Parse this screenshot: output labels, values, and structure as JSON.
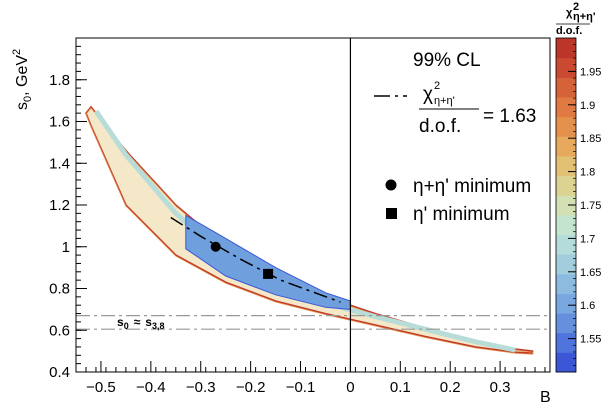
{
  "chart_data": {
    "type": "contour",
    "x_label": "B",
    "y_label_main": "s",
    "y_label_sub": "0",
    "y_label_rest": ", GeV",
    "y_label_sup": "2",
    "xlim": [
      -0.55,
      0.4
    ],
    "ylim": [
      0.4,
      2.0
    ],
    "x_ticks": [
      -0.5,
      -0.4,
      -0.3,
      -0.2,
      -0.1,
      0,
      0.1,
      0.2,
      0.3
    ],
    "x_tick_labels": [
      "−0.5",
      "−0.4",
      "−0.3",
      "−0.2",
      "−0.1",
      "0",
      "0.1",
      "0.2",
      "0.3"
    ],
    "y_ticks": [
      0.4,
      0.6,
      0.8,
      1.0,
      1.2,
      1.4,
      1.6,
      1.8
    ],
    "y_tick_labels": [
      "0.4",
      "0.6",
      "0.8",
      "1",
      "1.2",
      "1.4",
      "1.6",
      "1.8"
    ],
    "colorbar": {
      "range": [
        1.5,
        2.0
      ],
      "ticks": [
        1.55,
        1.6,
        1.65,
        1.7,
        1.75,
        1.8,
        1.85,
        1.9,
        1.95
      ],
      "tick_labels": [
        "1.55",
        "1.6",
        "1.65",
        "1.7",
        "1.75",
        "1.8",
        "1.85",
        "1.9",
        "1.95"
      ],
      "title_chi": "χ",
      "title_sup": "2",
      "title_sub": "η+η'",
      "title_den": "d.o.f.",
      "colors": [
        "#3b57d6",
        "#4f74db",
        "#6590dd",
        "#79a7df",
        "#8dbbdf",
        "#a1cddd",
        "#b3dcda",
        "#c4e4d0",
        "#d2e0b3",
        "#dcd292",
        "#e2c074",
        "#e6a95e",
        "#e5914e",
        "#e07a42",
        "#d6623a",
        "#c94a31",
        "#bb3529"
      ]
    },
    "legend": {
      "cl_text": "99% CL",
      "line_chi": "χ",
      "line_sup": "2",
      "line_sub": "η+η'",
      "line_den": "d.o.f.",
      "line_value": "= 1.63",
      "circle_label": "η+η' minimum",
      "square_label": "η' minimum"
    },
    "minima": {
      "eta_eta_prime": {
        "x": -0.27,
        "y": 1.0
      },
      "eta_prime": {
        "x": -0.165,
        "y": 0.87
      }
    },
    "threshold_lines": {
      "y_values": [
        0.67,
        0.605
      ],
      "label_s": "s",
      "label_s_sub": "0",
      "label_approx": "≈",
      "label_s2": "s",
      "label_s2_sub": "3,8"
    },
    "vertical_line_x": 0,
    "band_curve": {
      "upper_outer": [
        [
          -0.52,
          1.67
        ],
        [
          -0.45,
          1.46
        ],
        [
          -0.35,
          1.2
        ],
        [
          -0.25,
          1.0
        ],
        [
          -0.15,
          0.86
        ],
        [
          -0.05,
          0.76
        ],
        [
          0.05,
          0.68
        ],
        [
          0.15,
          0.61
        ],
        [
          0.25,
          0.55
        ],
        [
          0.33,
          0.51
        ],
        [
          0.365,
          0.5
        ]
      ],
      "lower_outer": [
        [
          0.365,
          0.49
        ],
        [
          0.33,
          0.495
        ],
        [
          0.25,
          0.52
        ],
        [
          0.15,
          0.57
        ],
        [
          0.05,
          0.625
        ],
        [
          -0.05,
          0.68
        ],
        [
          -0.15,
          0.74
        ],
        [
          -0.25,
          0.83
        ],
        [
          -0.35,
          0.96
        ],
        [
          -0.45,
          1.2
        ],
        [
          -0.52,
          1.58
        ],
        [
          -0.53,
          1.64
        ]
      ],
      "middle": [
        [
          -0.51,
          1.65
        ],
        [
          -0.45,
          1.44
        ],
        [
          -0.35,
          1.16
        ],
        [
          -0.25,
          0.95
        ],
        [
          -0.15,
          0.82
        ],
        [
          -0.05,
          0.73
        ],
        [
          0.05,
          0.665
        ],
        [
          0.15,
          0.605
        ],
        [
          0.25,
          0.545
        ],
        [
          0.33,
          0.505
        ]
      ],
      "inner_upper": [
        [
          -0.33,
          1.15
        ],
        [
          -0.25,
          1.04
        ],
        [
          -0.15,
          0.9
        ],
        [
          -0.05,
          0.78
        ],
        [
          0.0,
          0.74
        ]
      ],
      "inner_lower": [
        [
          0.0,
          0.7
        ],
        [
          -0.05,
          0.71
        ],
        [
          -0.15,
          0.77
        ],
        [
          -0.25,
          0.86
        ],
        [
          -0.33,
          0.99
        ]
      ],
      "dashed": [
        [
          -0.36,
          1.14
        ],
        [
          -0.3,
          1.05
        ],
        [
          -0.22,
          0.94
        ],
        [
          -0.14,
          0.84
        ],
        [
          -0.06,
          0.77
        ],
        [
          -0.02,
          0.735
        ]
      ]
    }
  }
}
